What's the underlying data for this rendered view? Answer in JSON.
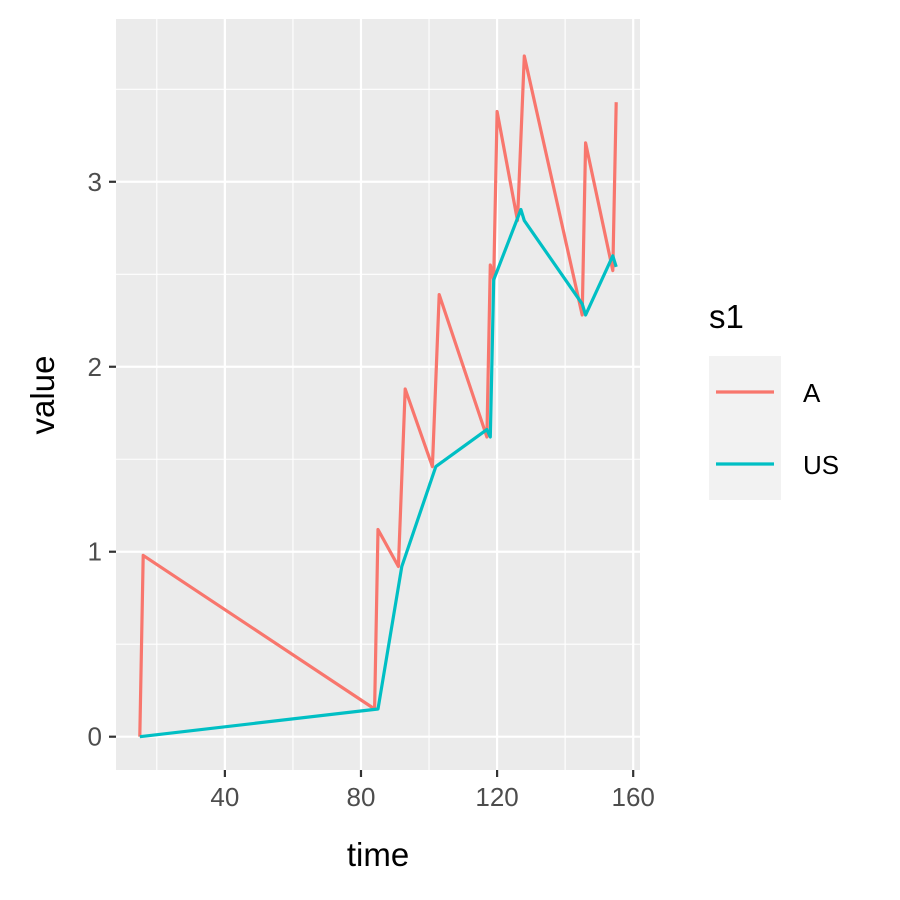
{
  "chart_data": {
    "type": "line",
    "title": "",
    "xlabel": "time",
    "ylabel": "value",
    "xlim": [
      8,
      162
    ],
    "ylim": [
      -0.18,
      3.88
    ],
    "x_ticks": [
      40,
      80,
      120,
      160
    ],
    "y_ticks": [
      0,
      1,
      2,
      3
    ],
    "grid": true,
    "legend": {
      "title": "s1",
      "position": "right"
    },
    "series": [
      {
        "name": "A",
        "color": "#F8766D",
        "points": [
          [
            15,
            0.0
          ],
          [
            16,
            0.98
          ],
          [
            84,
            0.15
          ],
          [
            85,
            1.12
          ],
          [
            91,
            0.92
          ],
          [
            93,
            1.88
          ],
          [
            101,
            1.46
          ],
          [
            103,
            2.39
          ],
          [
            117,
            1.62
          ],
          [
            118,
            2.55
          ],
          [
            119,
            2.47
          ],
          [
            120,
            3.38
          ],
          [
            126,
            2.79
          ],
          [
            128,
            3.68
          ],
          [
            145,
            2.28
          ],
          [
            146,
            3.21
          ],
          [
            154,
            2.52
          ],
          [
            155,
            3.43
          ]
        ]
      },
      {
        "name": "US",
        "color": "#00BFC4",
        "points": [
          [
            15,
            0.0
          ],
          [
            85,
            0.15
          ],
          [
            92,
            0.92
          ],
          [
            102,
            1.46
          ],
          [
            117,
            1.66
          ],
          [
            118,
            1.62
          ],
          [
            119,
            2.47
          ],
          [
            127,
            2.85
          ],
          [
            128,
            2.79
          ],
          [
            145,
            2.34
          ],
          [
            146,
            2.28
          ],
          [
            154,
            2.6
          ],
          [
            155,
            2.54
          ]
        ]
      }
    ]
  }
}
